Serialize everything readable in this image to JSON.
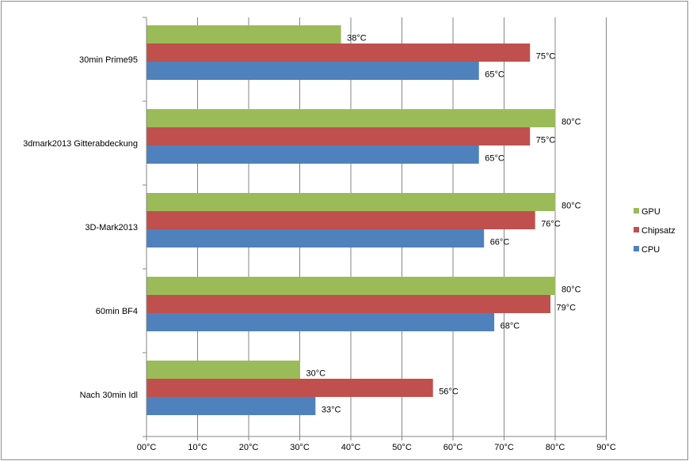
{
  "chart_data": {
    "type": "bar",
    "orientation": "horizontal",
    "title": "",
    "xlabel": "",
    "ylabel": "",
    "categories": [
      "30min Prime95",
      "3dmark2013 Gitterabdeckung",
      "3D-Mark2013",
      "60min BF4",
      "Nach 30min Idl"
    ],
    "series": [
      {
        "name": "GPU",
        "color": "#9bbb59",
        "values": [
          38,
          80,
          80,
          80,
          30
        ],
        "labels": [
          "38°C",
          "80°C",
          "80°C",
          "80°C",
          "30°C"
        ]
      },
      {
        "name": "Chipsatz",
        "color": "#c0504d",
        "values": [
          75,
          75,
          76,
          79,
          56
        ],
        "labels": [
          "75°C",
          "75°C",
          "76°C",
          "79°C",
          "56°C"
        ]
      },
      {
        "name": "CPU",
        "color": "#4f81bd",
        "values": [
          65,
          65,
          66,
          68,
          33
        ],
        "labels": [
          "65°C",
          "65°C",
          "66°C",
          "68°C",
          "33°C"
        ]
      }
    ],
    "xlim": [
      0,
      90
    ],
    "xticks": [
      0,
      10,
      20,
      30,
      40,
      50,
      60,
      70,
      80,
      90
    ],
    "xtick_labels": [
      "00°C",
      "10°C",
      "20°C",
      "30°C",
      "40°C",
      "50°C",
      "60°C",
      "70°C",
      "80°C",
      "90°C"
    ],
    "legend_order": [
      "GPU",
      "Chipsatz",
      "CPU"
    ],
    "legend_position": "right",
    "grid": "vertical major gridlines"
  }
}
